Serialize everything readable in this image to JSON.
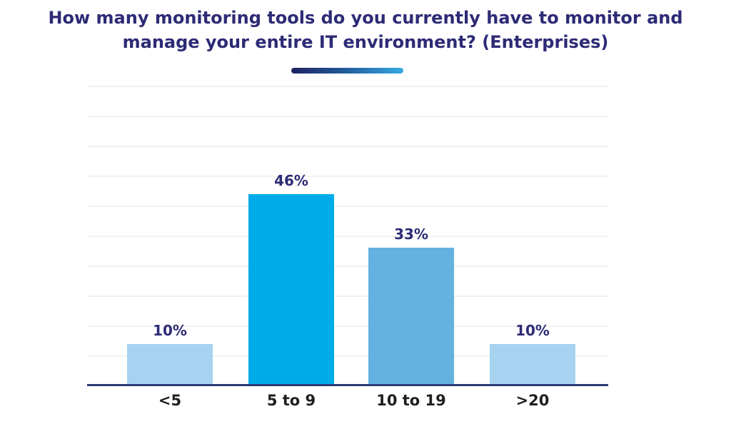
{
  "chart_data": {
    "type": "bar",
    "title": "How many monitoring tools do you currently have to monitor and manage your entire IT environment? (Enterprises)",
    "title_line1": "How many monitoring tools do you currently have to monitor and",
    "title_line2": "manage your entire IT environment? (Enterprises)",
    "categories": [
      "<5",
      "5 to 9",
      "10 to 19",
      ">20"
    ],
    "values": [
      10,
      46,
      33,
      10
    ],
    "value_labels": [
      "10%",
      "46%",
      "33%",
      "10%"
    ],
    "bar_colors": [
      "#a6d3f0",
      "#00abe9",
      "#63b2e0",
      "#a6d3f0"
    ],
    "xlabel": "",
    "ylabel": "",
    "ylim": [
      0,
      72
    ],
    "gridline_divisions": 10,
    "grid": "horizontal",
    "legend": "none",
    "colors": {
      "background": "#ffffff",
      "title_text": "#2d2b76",
      "value_label_text": "#2d2b76",
      "category_label_text": "#1f1f1f",
      "axis_line": "#2c3a74",
      "gridline": "#f1f1f1",
      "accent_gradient_start": "#1d2160",
      "accent_gradient_mid": "#235e9e",
      "accent_gradient_end": "#36abe3"
    }
  }
}
